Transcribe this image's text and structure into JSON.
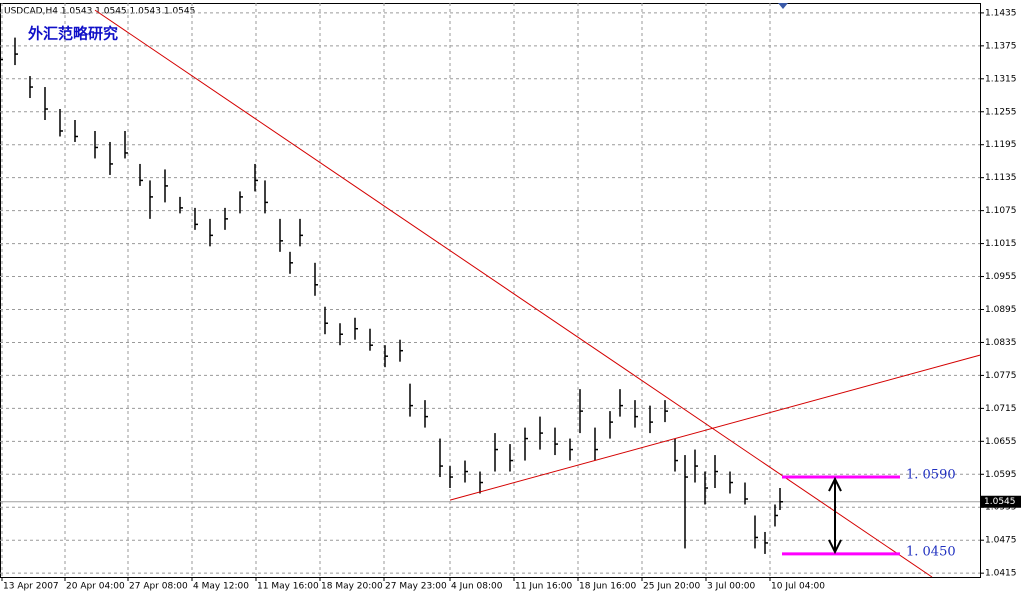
{
  "chart_data": {
    "type": "ohlc",
    "title": "USDCAD,H4  1.0543 1.0545 1.0543 1.0545",
    "watermark": "外汇范略研究",
    "xlim": [
      0,
      980
    ],
    "ylim": [
      1.0408,
      1.1453
    ],
    "grid": true,
    "bar_color": "#000000",
    "xticks": [
      {
        "value": 2,
        "label": "13 Apr 2007"
      },
      {
        "value": 65,
        "label": "20 Apr 04:00"
      },
      {
        "value": 128,
        "label": "27 Apr 08:00"
      },
      {
        "value": 192,
        "label": "4 May 12:00"
      },
      {
        "value": 256,
        "label": "11 May 16:00"
      },
      {
        "value": 320,
        "label": "18 May 20:00"
      },
      {
        "value": 384,
        "label": "27 May 23:00"
      },
      {
        "value": 450,
        "label": "4 Jun 08:00"
      },
      {
        "value": 514,
        "label": "11 Jun 16:00"
      },
      {
        "value": 578,
        "label": "18 Jun 16:00"
      },
      {
        "value": 642,
        "label": "25 Jun 20:00"
      },
      {
        "value": 706,
        "label": "3 Jul 00:00"
      },
      {
        "value": 770,
        "label": "10 Jul 04:00"
      }
    ],
    "yticks": [
      1.1435,
      1.1375,
      1.1315,
      1.1255,
      1.1195,
      1.1135,
      1.1075,
      1.1015,
      1.0955,
      1.0895,
      1.0835,
      1.0775,
      1.0715,
      1.0655,
      1.0595,
      1.0535,
      1.0475,
      1.0415
    ],
    "series": {
      "x": [
        0,
        15,
        30,
        45,
        60,
        75,
        95,
        110,
        125,
        140,
        150,
        165,
        180,
        195,
        210,
        225,
        240,
        255,
        265,
        280,
        290,
        300,
        315,
        325,
        340,
        355,
        370,
        385,
        400,
        410,
        425,
        440,
        450,
        465,
        480,
        495,
        510,
        525,
        540,
        555,
        570,
        580,
        595,
        610,
        620,
        635,
        650,
        665,
        675,
        685,
        695,
        705,
        715,
        730,
        745,
        755,
        765,
        775,
        780
      ],
      "high": [
        1.137,
        1.139,
        1.132,
        1.13,
        1.126,
        1.124,
        1.122,
        1.12,
        1.122,
        1.116,
        1.113,
        1.115,
        1.11,
        1.108,
        1.106,
        1.108,
        1.111,
        1.116,
        1.113,
        1.106,
        1.1,
        1.106,
        1.098,
        1.09,
        1.087,
        1.088,
        1.086,
        1.083,
        1.084,
        1.076,
        1.073,
        1.066,
        1.061,
        1.062,
        1.06,
        1.067,
        1.065,
        1.068,
        1.07,
        1.068,
        1.066,
        1.075,
        1.068,
        1.071,
        1.075,
        1.073,
        1.072,
        1.073,
        1.066,
        1.063,
        1.064,
        1.06,
        1.063,
        1.06,
        1.058,
        1.052,
        1.049,
        1.054,
        1.057
      ],
      "low": [
        1.133,
        1.134,
        1.128,
        1.124,
        1.121,
        1.12,
        1.117,
        1.114,
        1.117,
        1.112,
        1.106,
        1.109,
        1.107,
        1.104,
        1.101,
        1.104,
        1.107,
        1.111,
        1.107,
        1.1,
        1.096,
        1.101,
        1.092,
        1.085,
        1.083,
        1.084,
        1.082,
        1.079,
        1.08,
        1.07,
        1.068,
        1.059,
        1.057,
        1.058,
        1.056,
        1.06,
        1.06,
        1.062,
        1.064,
        1.063,
        1.062,
        1.067,
        1.062,
        1.066,
        1.07,
        1.068,
        1.067,
        1.069,
        1.06,
        1.046,
        1.058,
        1.054,
        1.057,
        1.056,
        1.054,
        1.046,
        1.045,
        1.05,
        1.053
      ],
      "close": [
        1.135,
        1.136,
        1.13,
        1.126,
        1.122,
        1.121,
        1.119,
        1.116,
        1.118,
        1.113,
        1.11,
        1.112,
        1.108,
        1.105,
        1.103,
        1.106,
        1.11,
        1.113,
        1.109,
        1.102,
        1.098,
        1.103,
        1.094,
        1.087,
        1.085,
        1.086,
        1.083,
        1.081,
        1.082,
        1.072,
        1.07,
        1.061,
        1.059,
        1.06,
        1.058,
        1.064,
        1.062,
        1.066,
        1.067,
        1.065,
        1.064,
        1.071,
        1.064,
        1.069,
        1.072,
        1.07,
        1.069,
        1.071,
        1.062,
        1.059,
        1.061,
        1.057,
        1.06,
        1.058,
        1.055,
        1.048,
        1.047,
        1.052,
        1.0545
      ]
    },
    "trend_lines": [
      {
        "x": [
          95,
          932
        ],
        "y": [
          1.144,
          1.0408
        ],
        "color": "#d40000"
      },
      {
        "x": [
          450,
          980
        ],
        "y": [
          1.0548,
          1.0812
        ],
        "color": "#d40000"
      }
    ],
    "levels": [
      {
        "value": 1.059,
        "label": "1. 0590",
        "x": [
          782,
          900
        ],
        "color": "#ff00ff"
      },
      {
        "value": 1.045,
        "label": "1. 0450",
        "x": [
          782,
          900
        ],
        "color": "#ff00ff"
      }
    ],
    "range_arrow": {
      "x": 835,
      "y": [
        1.059,
        1.045
      ],
      "color": "#000000"
    },
    "current_price": {
      "value": 1.0545,
      "label": "1.0545",
      "color": "#a0a0a0"
    }
  }
}
